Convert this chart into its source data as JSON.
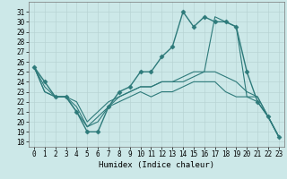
{
  "title": "",
  "xlabel": "Humidex (Indice chaleur)",
  "bg_color": "#cce8e8",
  "line_color": "#2d7a7a",
  "grid_color": "#b8d4d4",
  "x_ticks": [
    0,
    1,
    2,
    3,
    4,
    5,
    6,
    7,
    8,
    9,
    10,
    11,
    12,
    13,
    14,
    15,
    16,
    17,
    18,
    19,
    20,
    21,
    22,
    23
  ],
  "y_ticks": [
    18,
    19,
    20,
    21,
    22,
    23,
    24,
    25,
    26,
    27,
    28,
    29,
    30,
    31
  ],
  "ylim": [
    17.5,
    32.0
  ],
  "xlim": [
    -0.5,
    23.5
  ],
  "series": [
    {
      "x": [
        0,
        1,
        2,
        3,
        4,
        5,
        6,
        7,
        8,
        9,
        10,
        11,
        12,
        13,
        14,
        15,
        16,
        17,
        18,
        19,
        20,
        21,
        22,
        23
      ],
      "y": [
        25.5,
        24,
        22.5,
        22.5,
        21,
        19,
        19,
        21.5,
        23,
        23.5,
        25,
        25,
        26.5,
        27.5,
        31,
        29.5,
        30.5,
        30,
        30,
        29.5,
        25,
        22,
        20.5,
        18.5
      ],
      "marker": "D",
      "markersize": 2.5,
      "linewidth": 1.0
    },
    {
      "x": [
        0,
        1,
        2,
        3,
        4,
        5,
        6,
        7,
        8,
        9,
        10,
        11,
        12,
        13,
        14,
        15,
        16,
        17,
        18,
        19,
        20,
        21,
        22,
        23
      ],
      "y": [
        25.5,
        23,
        22.5,
        22.5,
        21.5,
        19.5,
        20.5,
        21.5,
        22.5,
        23,
        23.5,
        23.5,
        24,
        24,
        24,
        24.5,
        25.0,
        30.5,
        30,
        29.5,
        22.5,
        22,
        20.5,
        18.5
      ],
      "marker": null,
      "linewidth": 0.8
    },
    {
      "x": [
        0,
        1,
        2,
        3,
        4,
        5,
        6,
        7,
        8,
        9,
        10,
        11,
        12,
        13,
        14,
        15,
        16,
        17,
        18,
        19,
        20,
        21,
        22,
        23
      ],
      "y": [
        25.5,
        23.5,
        22.5,
        22.5,
        22,
        20,
        21,
        22,
        22.5,
        23,
        23.5,
        23.5,
        24,
        24,
        24.5,
        25,
        25,
        25,
        24.5,
        24,
        23.0,
        22.5,
        20.5,
        18.5
      ],
      "marker": null,
      "linewidth": 0.8
    },
    {
      "x": [
        0,
        1,
        2,
        3,
        4,
        5,
        6,
        7,
        8,
        9,
        10,
        11,
        12,
        13,
        14,
        15,
        16,
        17,
        18,
        19,
        20,
        21,
        22,
        23
      ],
      "y": [
        25.5,
        23,
        22.5,
        22.5,
        21,
        19.5,
        20,
        21.5,
        22,
        22.5,
        23,
        22.5,
        23,
        23,
        23.5,
        24,
        24,
        24,
        23,
        22.5,
        22.5,
        22.5,
        20.5,
        18.5
      ],
      "marker": null,
      "linewidth": 0.8
    }
  ],
  "tick_fontsize": 5.5,
  "xlabel_fontsize": 6.5
}
